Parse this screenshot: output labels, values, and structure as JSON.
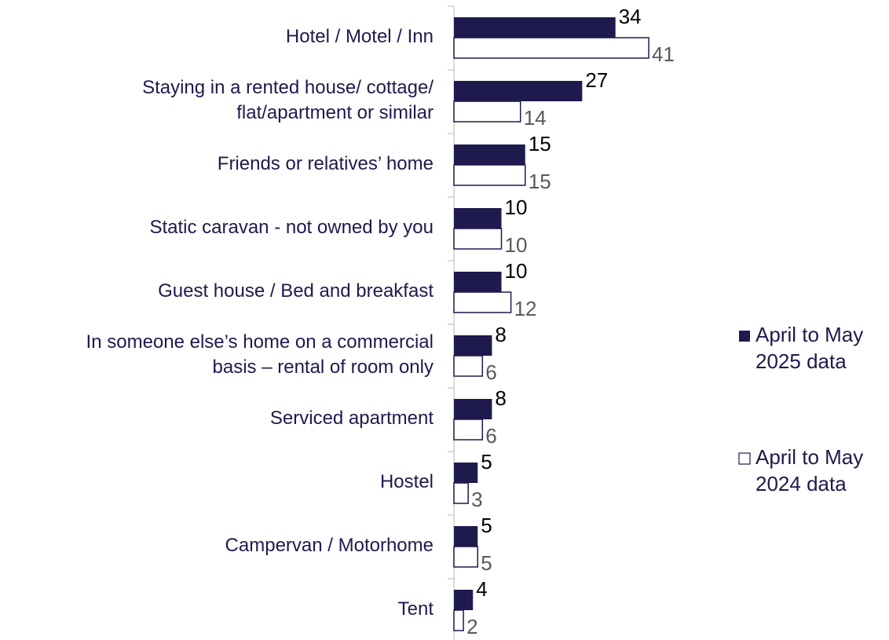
{
  "chart_data": {
    "type": "bar",
    "orientation": "horizontal",
    "categories": [
      "Hotel / Motel / Inn",
      "Staying in a rented house/ cottage/\nflat/apartment or similar",
      "Friends or relatives’ home",
      "Static caravan - not owned by you",
      "Guest house / Bed and breakfast",
      "In someone else’s home on a commercial\nbasis – rental of room only",
      "Serviced apartment",
      "Hostel",
      "Campervan / Motorhome",
      "Tent"
    ],
    "series": [
      {
        "name": "April to May\n2025 data",
        "color": "#1e1a4d",
        "values": [
          34,
          27,
          15,
          10,
          10,
          8,
          8,
          5,
          5,
          4
        ]
      },
      {
        "name": "April to May\n2024 data",
        "color": "#ffffff",
        "values": [
          41,
          14,
          15,
          10,
          12,
          6,
          6,
          3,
          5,
          2
        ]
      }
    ],
    "legend": "right"
  }
}
